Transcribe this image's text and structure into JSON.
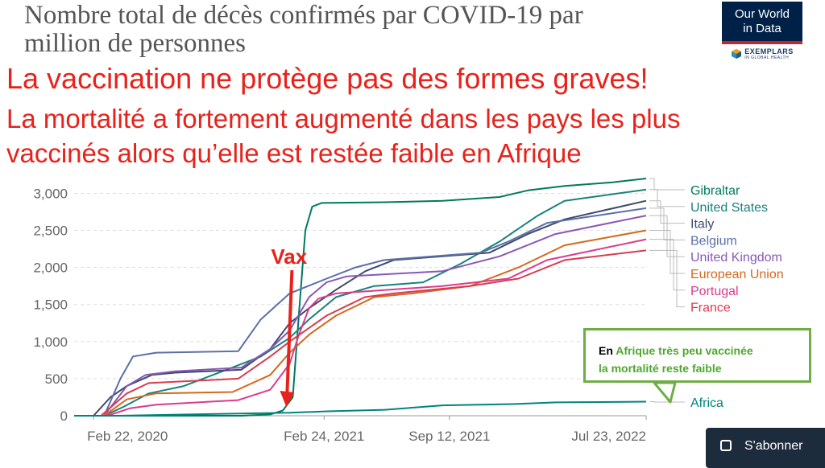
{
  "header": {
    "title_line1": "Nombre total de décès confirmés par COVID-19 par",
    "title_line2": "million de personnes"
  },
  "logo": {
    "line1": "Our World",
    "line2": "in Data",
    "exemplars": "EXEMPLARS",
    "exemplars_sub": "IN GLOBAL HEALTH"
  },
  "claims": {
    "line1": "La vaccination ne protège pas des formes graves!",
    "line2": "La mortalité a fortement augmenté dans les pays les plus",
    "line3_a": "vaccinés",
    "line3_b": " alors qu’elle est restée faible en Afrique"
  },
  "annotation": {
    "vax_label": "Vax",
    "vax_date": "2020-12-27",
    "callout_prefix": "En ",
    "callout_highlight": "Afrique très peu vaccinée",
    "callout_line2": "la mortalité reste faible"
  },
  "subscribe_button": {
    "label": "S'abonner"
  },
  "colors": {
    "claim": "#e8221b",
    "vax_arrow": "#e8221b",
    "callout_border": "#70ad47",
    "callout_highlight": "#4ea72e"
  },
  "chart_data": {
    "type": "line",
    "x_start": "2020-01-22",
    "x_end": "2022-07-23",
    "x_ticks": [
      {
        "date": "2020-02-22",
        "label": "Feb 22, 2020"
      },
      {
        "date": "2021-02-24",
        "label": "Feb 24, 2021"
      },
      {
        "date": "2021-09-12",
        "label": "Sep 12, 2021"
      },
      {
        "date": "2022-07-23",
        "label": "Jul 23, 2022"
      }
    ],
    "ylim": [
      0,
      3200
    ],
    "y_ticks": [
      {
        "value": 0,
        "label": "0"
      },
      {
        "value": 500,
        "label": "500"
      },
      {
        "value": 1000,
        "label": "1,000"
      },
      {
        "value": 1500,
        "label": "1,500"
      },
      {
        "value": 2000,
        "label": "2,000"
      },
      {
        "value": 2500,
        "label": "2,500"
      },
      {
        "value": 3000,
        "label": "3,000"
      }
    ],
    "grid": true,
    "legend_placement": "right",
    "series": [
      {
        "name": "Gibraltar",
        "color": "#00795b",
        "points": [
          [
            "2020-01-22",
            0
          ],
          [
            "2020-03-15",
            0
          ],
          [
            "2020-10-15",
            0
          ],
          [
            "2020-12-01",
            20
          ],
          [
            "2020-12-20",
            70
          ],
          [
            "2021-01-05",
            250
          ],
          [
            "2021-01-15",
            1400
          ],
          [
            "2021-01-25",
            2500
          ],
          [
            "2021-02-05",
            2820
          ],
          [
            "2021-02-20",
            2870
          ],
          [
            "2021-06-01",
            2880
          ],
          [
            "2021-09-01",
            2900
          ],
          [
            "2021-12-01",
            2950
          ],
          [
            "2022-01-15",
            3040
          ],
          [
            "2022-03-15",
            3100
          ],
          [
            "2022-06-01",
            3150
          ],
          [
            "2022-07-23",
            3200
          ]
        ]
      },
      {
        "name": "United States",
        "color": "#18827b",
        "points": [
          [
            "2020-01-22",
            0
          ],
          [
            "2020-03-10",
            0
          ],
          [
            "2020-04-10",
            120
          ],
          [
            "2020-05-20",
            300
          ],
          [
            "2020-07-15",
            400
          ],
          [
            "2020-09-15",
            600
          ],
          [
            "2020-11-15",
            800
          ],
          [
            "2020-12-31",
            1050
          ],
          [
            "2021-01-31",
            1300
          ],
          [
            "2021-03-15",
            1600
          ],
          [
            "2021-05-15",
            1750
          ],
          [
            "2021-08-01",
            1800
          ],
          [
            "2021-09-30",
            2050
          ],
          [
            "2021-12-01",
            2350
          ],
          [
            "2022-01-31",
            2700
          ],
          [
            "2022-03-15",
            2900
          ],
          [
            "2022-07-23",
            3050
          ]
        ]
      },
      {
        "name": "Italy",
        "color": "#3e4a6a",
        "points": [
          [
            "2020-01-22",
            0
          ],
          [
            "2020-02-22",
            0
          ],
          [
            "2020-03-20",
            250
          ],
          [
            "2020-04-15",
            400
          ],
          [
            "2020-05-25",
            550
          ],
          [
            "2020-07-01",
            580
          ],
          [
            "2020-10-15",
            620
          ],
          [
            "2020-11-30",
            900
          ],
          [
            "2020-12-31",
            1250
          ],
          [
            "2021-01-31",
            1450
          ],
          [
            "2021-03-15",
            1700
          ],
          [
            "2021-05-01",
            1950
          ],
          [
            "2021-06-15",
            2100
          ],
          [
            "2021-11-15",
            2200
          ],
          [
            "2022-01-15",
            2450
          ],
          [
            "2022-03-15",
            2650
          ],
          [
            "2022-07-23",
            2900
          ]
        ]
      },
      {
        "name": "Belgium",
        "color": "#5b6fa8",
        "points": [
          [
            "2020-01-22",
            0
          ],
          [
            "2020-03-10",
            0
          ],
          [
            "2020-04-05",
            500
          ],
          [
            "2020-04-25",
            800
          ],
          [
            "2020-06-01",
            850
          ],
          [
            "2020-10-10",
            870
          ],
          [
            "2020-11-15",
            1300
          ],
          [
            "2020-12-31",
            1650
          ],
          [
            "2021-02-28",
            1850
          ],
          [
            "2021-04-15",
            2000
          ],
          [
            "2021-05-31",
            2100
          ],
          [
            "2021-11-01",
            2200
          ],
          [
            "2021-12-15",
            2350
          ],
          [
            "2022-02-15",
            2600
          ],
          [
            "2022-07-23",
            2800
          ]
        ]
      },
      {
        "name": "United Kingdom",
        "color": "#8957b6",
        "points": [
          [
            "2020-01-22",
            0
          ],
          [
            "2020-03-10",
            0
          ],
          [
            "2020-04-15",
            400
          ],
          [
            "2020-05-15",
            550
          ],
          [
            "2020-07-01",
            600
          ],
          [
            "2020-10-15",
            650
          ],
          [
            "2020-11-30",
            900
          ],
          [
            "2020-12-31",
            1150
          ],
          [
            "2021-01-31",
            1600
          ],
          [
            "2021-02-28",
            1800
          ],
          [
            "2021-04-01",
            1880
          ],
          [
            "2021-09-01",
            1950
          ],
          [
            "2021-12-01",
            2150
          ],
          [
            "2022-02-28",
            2450
          ],
          [
            "2022-07-23",
            2700
          ]
        ]
      },
      {
        "name": "European Union",
        "color": "#d2691e",
        "points": [
          [
            "2020-01-22",
            0
          ],
          [
            "2020-03-10",
            0
          ],
          [
            "2020-04-15",
            220
          ],
          [
            "2020-05-31",
            300
          ],
          [
            "2020-10-01",
            320
          ],
          [
            "2020-11-30",
            550
          ],
          [
            "2020-12-31",
            850
          ],
          [
            "2021-02-01",
            1100
          ],
          [
            "2021-03-15",
            1350
          ],
          [
            "2021-05-15",
            1600
          ],
          [
            "2021-07-15",
            1650
          ],
          [
            "2021-10-15",
            1750
          ],
          [
            "2021-12-31",
            2000
          ],
          [
            "2022-03-15",
            2300
          ],
          [
            "2022-07-23",
            2500
          ]
        ]
      },
      {
        "name": "Portugal",
        "color": "#db3b8b",
        "points": [
          [
            "2020-01-22",
            0
          ],
          [
            "2020-03-15",
            0
          ],
          [
            "2020-04-20",
            100
          ],
          [
            "2020-06-01",
            150
          ],
          [
            "2020-10-10",
            210
          ],
          [
            "2020-11-30",
            350
          ],
          [
            "2020-12-31",
            700
          ],
          [
            "2021-01-15",
            1100
          ],
          [
            "2021-01-31",
            1450
          ],
          [
            "2021-02-15",
            1580
          ],
          [
            "2021-03-15",
            1650
          ],
          [
            "2021-09-01",
            1750
          ],
          [
            "2021-12-15",
            1850
          ],
          [
            "2022-02-15",
            2100
          ],
          [
            "2022-07-23",
            2380
          ]
        ]
      },
      {
        "name": "France",
        "color": "#d73c50",
        "points": [
          [
            "2020-01-22",
            0
          ],
          [
            "2020-03-05",
            0
          ],
          [
            "2020-04-15",
            300
          ],
          [
            "2020-05-20",
            440
          ],
          [
            "2020-10-10",
            500
          ],
          [
            "2020-11-30",
            800
          ],
          [
            "2020-12-31",
            1000
          ],
          [
            "2021-02-28",
            1350
          ],
          [
            "2021-04-30",
            1600
          ],
          [
            "2021-06-15",
            1650
          ],
          [
            "2021-10-15",
            1750
          ],
          [
            "2021-12-31",
            1850
          ],
          [
            "2022-03-15",
            2100
          ],
          [
            "2022-07-23",
            2230
          ]
        ]
      },
      {
        "name": "Africa",
        "color": "#00847e",
        "points": [
          [
            "2020-01-22",
            0
          ],
          [
            "2020-04-01",
            0
          ],
          [
            "2020-08-01",
            20
          ],
          [
            "2020-12-31",
            40
          ],
          [
            "2021-03-01",
            60
          ],
          [
            "2021-06-01",
            80
          ],
          [
            "2021-09-01",
            140
          ],
          [
            "2021-12-31",
            160
          ],
          [
            "2022-03-01",
            180
          ],
          [
            "2022-07-23",
            190
          ]
        ]
      }
    ]
  }
}
